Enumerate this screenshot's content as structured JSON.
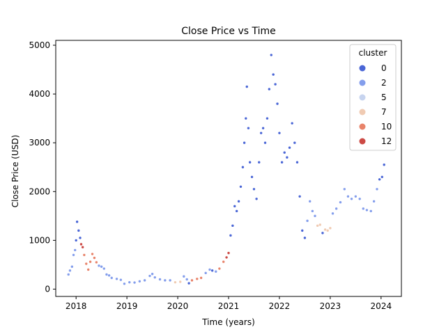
{
  "chart_data": {
    "type": "scatter",
    "title": "Close Price vs Time",
    "xlabel": "Time (years)",
    "ylabel": "Close Price (USD)",
    "xlim": [
      2017.6,
      2024.4
    ],
    "ylim": [
      -150,
      5100
    ],
    "x_ticks": [
      "2018",
      "2019",
      "2020",
      "2021",
      "2022",
      "2023",
      "2024"
    ],
    "y_ticks": [
      "0",
      "1000",
      "2000",
      "3000",
      "4000",
      "5000"
    ],
    "grid": false,
    "legend": {
      "title": "cluster",
      "placement": "top-right",
      "entries": [
        {
          "label": "0",
          "color": "#4a66d6"
        },
        {
          "label": "2",
          "color": "#849eec"
        },
        {
          "label": "5",
          "color": "#c7d4ef"
        },
        {
          "label": "7",
          "color": "#f0cbb3"
        },
        {
          "label": "10",
          "color": "#e8836a"
        },
        {
          "label": "12",
          "color": "#cc4a45"
        }
      ]
    },
    "series_points": [
      {
        "x": 2017.85,
        "y": 300,
        "c": "#849eec"
      },
      {
        "x": 2017.88,
        "y": 380,
        "c": "#849eec"
      },
      {
        "x": 2017.92,
        "y": 460,
        "c": "#849eec"
      },
      {
        "x": 2017.95,
        "y": 700,
        "c": "#849eec"
      },
      {
        "x": 2017.98,
        "y": 800,
        "c": "#849eec"
      },
      {
        "x": 2018.0,
        "y": 1000,
        "c": "#4a66d6"
      },
      {
        "x": 2018.02,
        "y": 1380,
        "c": "#4a66d6"
      },
      {
        "x": 2018.05,
        "y": 1200,
        "c": "#4a66d6"
      },
      {
        "x": 2018.08,
        "y": 1050,
        "c": "#4a66d6"
      },
      {
        "x": 2018.1,
        "y": 920,
        "c": "#cc4a45"
      },
      {
        "x": 2018.13,
        "y": 860,
        "c": "#cc4a45"
      },
      {
        "x": 2018.16,
        "y": 700,
        "c": "#e8836a"
      },
      {
        "x": 2018.2,
        "y": 520,
        "c": "#e8836a"
      },
      {
        "x": 2018.24,
        "y": 400,
        "c": "#e8836a"
      },
      {
        "x": 2018.28,
        "y": 560,
        "c": "#e8836a"
      },
      {
        "x": 2018.32,
        "y": 720,
        "c": "#e8836a"
      },
      {
        "x": 2018.36,
        "y": 640,
        "c": "#e8836a"
      },
      {
        "x": 2018.4,
        "y": 550,
        "c": "#e8836a"
      },
      {
        "x": 2018.45,
        "y": 480,
        "c": "#849eec"
      },
      {
        "x": 2018.5,
        "y": 460,
        "c": "#849eec"
      },
      {
        "x": 2018.55,
        "y": 420,
        "c": "#849eec"
      },
      {
        "x": 2018.6,
        "y": 300,
        "c": "#849eec"
      },
      {
        "x": 2018.65,
        "y": 280,
        "c": "#849eec"
      },
      {
        "x": 2018.7,
        "y": 230,
        "c": "#849eec"
      },
      {
        "x": 2018.8,
        "y": 210,
        "c": "#849eec"
      },
      {
        "x": 2018.88,
        "y": 190,
        "c": "#849eec"
      },
      {
        "x": 2018.95,
        "y": 110,
        "c": "#849eec"
      },
      {
        "x": 2019.05,
        "y": 140,
        "c": "#849eec"
      },
      {
        "x": 2019.15,
        "y": 135,
        "c": "#849eec"
      },
      {
        "x": 2019.25,
        "y": 160,
        "c": "#849eec"
      },
      {
        "x": 2019.35,
        "y": 180,
        "c": "#849eec"
      },
      {
        "x": 2019.45,
        "y": 270,
        "c": "#849eec"
      },
      {
        "x": 2019.5,
        "y": 310,
        "c": "#849eec"
      },
      {
        "x": 2019.55,
        "y": 240,
        "c": "#849eec"
      },
      {
        "x": 2019.65,
        "y": 200,
        "c": "#849eec"
      },
      {
        "x": 2019.75,
        "y": 180,
        "c": "#849eec"
      },
      {
        "x": 2019.85,
        "y": 180,
        "c": "#849eec"
      },
      {
        "x": 2019.95,
        "y": 140,
        "c": "#f0cbb3"
      },
      {
        "x": 2020.05,
        "y": 150,
        "c": "#f0cbb3"
      },
      {
        "x": 2020.12,
        "y": 260,
        "c": "#849eec"
      },
      {
        "x": 2020.18,
        "y": 200,
        "c": "#849eec"
      },
      {
        "x": 2020.22,
        "y": 120,
        "c": "#4a66d6"
      },
      {
        "x": 2020.28,
        "y": 180,
        "c": "#e8836a"
      },
      {
        "x": 2020.38,
        "y": 210,
        "c": "#e8836a"
      },
      {
        "x": 2020.46,
        "y": 230,
        "c": "#e8836a"
      },
      {
        "x": 2020.55,
        "y": 330,
        "c": "#849eec"
      },
      {
        "x": 2020.63,
        "y": 400,
        "c": "#849eec"
      },
      {
        "x": 2020.68,
        "y": 380,
        "c": "#4a66d6"
      },
      {
        "x": 2020.75,
        "y": 360,
        "c": "#849eec"
      },
      {
        "x": 2020.82,
        "y": 420,
        "c": "#e8836a"
      },
      {
        "x": 2020.9,
        "y": 560,
        "c": "#e8836a"
      },
      {
        "x": 2020.96,
        "y": 650,
        "c": "#cc4a45"
      },
      {
        "x": 2021.0,
        "y": 740,
        "c": "#cc4a45"
      },
      {
        "x": 2021.04,
        "y": 1100,
        "c": "#4a66d6"
      },
      {
        "x": 2021.08,
        "y": 1300,
        "c": "#4a66d6"
      },
      {
        "x": 2021.12,
        "y": 1700,
        "c": "#4a66d6"
      },
      {
        "x": 2021.16,
        "y": 1600,
        "c": "#4a66d6"
      },
      {
        "x": 2021.2,
        "y": 1800,
        "c": "#4a66d6"
      },
      {
        "x": 2021.24,
        "y": 2100,
        "c": "#4a66d6"
      },
      {
        "x": 2021.28,
        "y": 2500,
        "c": "#4a66d6"
      },
      {
        "x": 2021.31,
        "y": 3000,
        "c": "#4a66d6"
      },
      {
        "x": 2021.34,
        "y": 3500,
        "c": "#4a66d6"
      },
      {
        "x": 2021.36,
        "y": 4150,
        "c": "#4a66d6"
      },
      {
        "x": 2021.39,
        "y": 3300,
        "c": "#4a66d6"
      },
      {
        "x": 2021.42,
        "y": 2600,
        "c": "#4a66d6"
      },
      {
        "x": 2021.46,
        "y": 2300,
        "c": "#4a66d6"
      },
      {
        "x": 2021.5,
        "y": 2050,
        "c": "#4a66d6"
      },
      {
        "x": 2021.55,
        "y": 1850,
        "c": "#4a66d6"
      },
      {
        "x": 2021.6,
        "y": 2600,
        "c": "#4a66d6"
      },
      {
        "x": 2021.64,
        "y": 3200,
        "c": "#4a66d6"
      },
      {
        "x": 2021.68,
        "y": 3300,
        "c": "#4a66d6"
      },
      {
        "x": 2021.72,
        "y": 3000,
        "c": "#4a66d6"
      },
      {
        "x": 2021.76,
        "y": 3500,
        "c": "#4a66d6"
      },
      {
        "x": 2021.8,
        "y": 4100,
        "c": "#4a66d6"
      },
      {
        "x": 2021.84,
        "y": 4800,
        "c": "#4a66d6"
      },
      {
        "x": 2021.88,
        "y": 4400,
        "c": "#4a66d6"
      },
      {
        "x": 2021.92,
        "y": 4200,
        "c": "#4a66d6"
      },
      {
        "x": 2021.96,
        "y": 3800,
        "c": "#4a66d6"
      },
      {
        "x": 2022.0,
        "y": 3200,
        "c": "#4a66d6"
      },
      {
        "x": 2022.05,
        "y": 2600,
        "c": "#4a66d6"
      },
      {
        "x": 2022.1,
        "y": 2800,
        "c": "#4a66d6"
      },
      {
        "x": 2022.15,
        "y": 2700,
        "c": "#4a66d6"
      },
      {
        "x": 2022.2,
        "y": 2900,
        "c": "#4a66d6"
      },
      {
        "x": 2022.25,
        "y": 3400,
        "c": "#4a66d6"
      },
      {
        "x": 2022.3,
        "y": 3000,
        "c": "#4a66d6"
      },
      {
        "x": 2022.35,
        "y": 2600,
        "c": "#4a66d6"
      },
      {
        "x": 2022.4,
        "y": 1900,
        "c": "#4a66d6"
      },
      {
        "x": 2022.45,
        "y": 1200,
        "c": "#4a66d6"
      },
      {
        "x": 2022.5,
        "y": 1050,
        "c": "#4a66d6"
      },
      {
        "x": 2022.55,
        "y": 1400,
        "c": "#849eec"
      },
      {
        "x": 2022.6,
        "y": 1800,
        "c": "#849eec"
      },
      {
        "x": 2022.65,
        "y": 1600,
        "c": "#849eec"
      },
      {
        "x": 2022.7,
        "y": 1500,
        "c": "#849eec"
      },
      {
        "x": 2022.75,
        "y": 1300,
        "c": "#f0cbb3"
      },
      {
        "x": 2022.8,
        "y": 1320,
        "c": "#f0cbb3"
      },
      {
        "x": 2022.85,
        "y": 1150,
        "c": "#4a66d6"
      },
      {
        "x": 2022.9,
        "y": 1220,
        "c": "#f0cbb3"
      },
      {
        "x": 2022.95,
        "y": 1200,
        "c": "#f0cbb3"
      },
      {
        "x": 2023.0,
        "y": 1250,
        "c": "#f0cbb3"
      },
      {
        "x": 2023.05,
        "y": 1550,
        "c": "#849eec"
      },
      {
        "x": 2023.12,
        "y": 1650,
        "c": "#849eec"
      },
      {
        "x": 2023.2,
        "y": 1780,
        "c": "#849eec"
      },
      {
        "x": 2023.28,
        "y": 2050,
        "c": "#849eec"
      },
      {
        "x": 2023.35,
        "y": 1900,
        "c": "#849eec"
      },
      {
        "x": 2023.42,
        "y": 1850,
        "c": "#849eec"
      },
      {
        "x": 2023.5,
        "y": 1900,
        "c": "#849eec"
      },
      {
        "x": 2023.58,
        "y": 1850,
        "c": "#849eec"
      },
      {
        "x": 2023.65,
        "y": 1650,
        "c": "#849eec"
      },
      {
        "x": 2023.72,
        "y": 1620,
        "c": "#849eec"
      },
      {
        "x": 2023.8,
        "y": 1600,
        "c": "#849eec"
      },
      {
        "x": 2023.86,
        "y": 1800,
        "c": "#849eec"
      },
      {
        "x": 2023.92,
        "y": 2050,
        "c": "#849eec"
      },
      {
        "x": 2023.97,
        "y": 2250,
        "c": "#4a66d6"
      },
      {
        "x": 2024.02,
        "y": 2300,
        "c": "#4a66d6"
      },
      {
        "x": 2024.06,
        "y": 2550,
        "c": "#4a66d6"
      }
    ]
  }
}
